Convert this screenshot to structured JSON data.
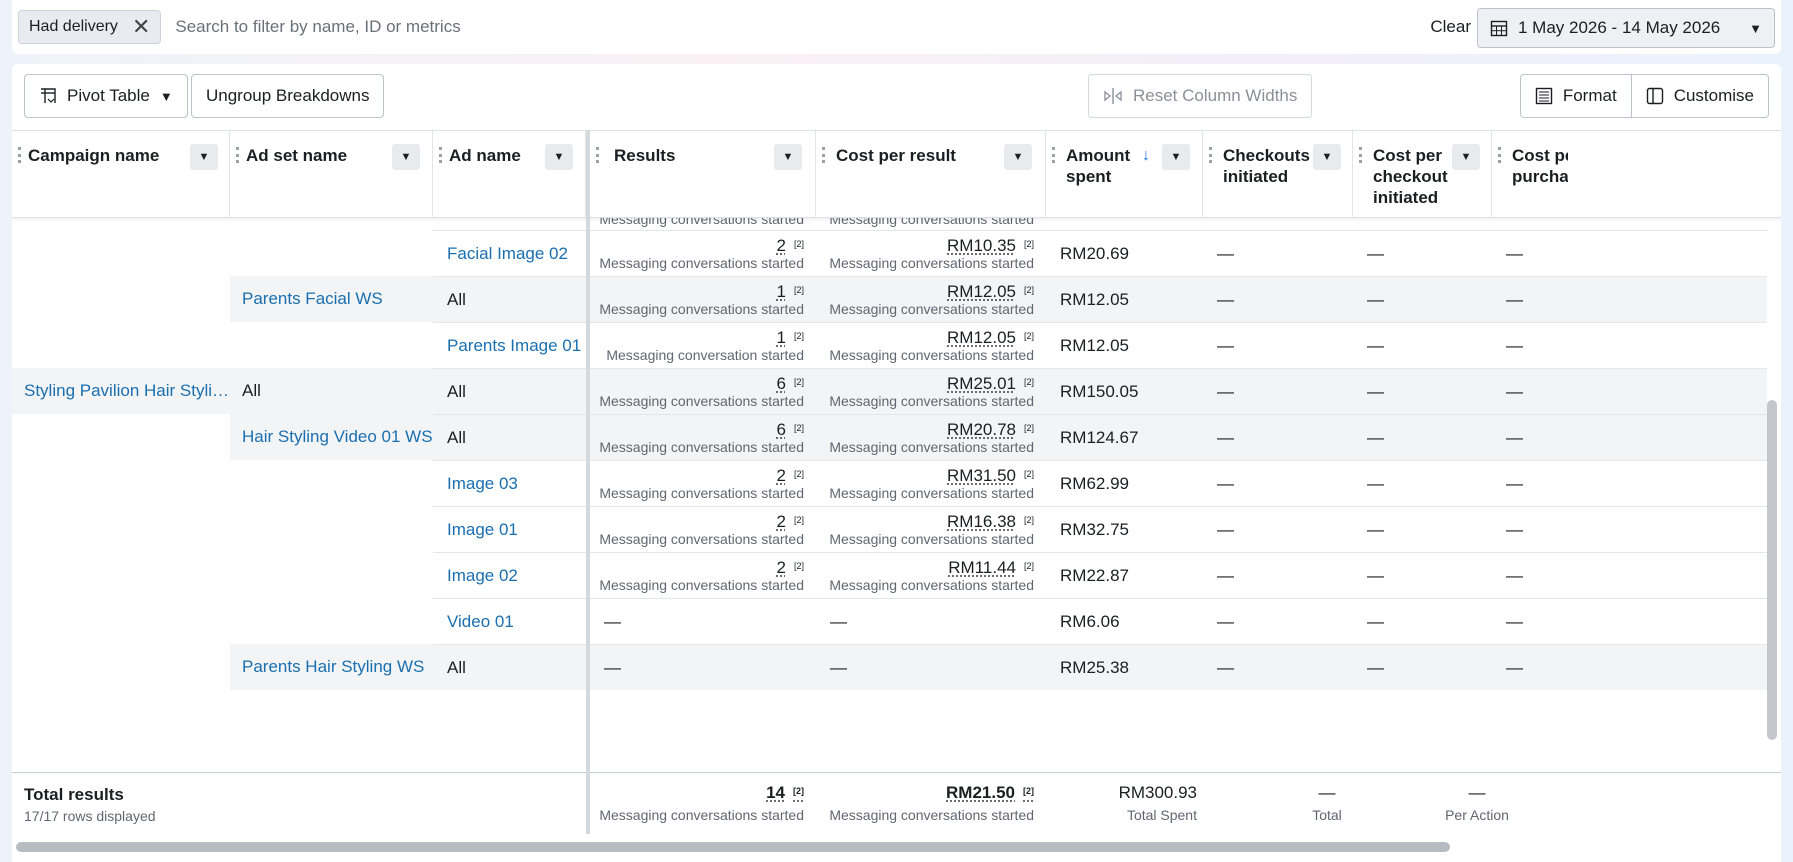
{
  "filter": {
    "chip_label": "Had delivery",
    "search_placeholder": "Search to filter by name, ID or metrics",
    "clear_label": "Clear",
    "date_range": "1 May 2026 - 14 May 2026"
  },
  "toolbar": {
    "pivot_label": "Pivot Table",
    "ungroup_label": "Ungroup Breakdowns",
    "reset_label": "Reset Column Widths",
    "format_label": "Format",
    "customise_label": "Customise"
  },
  "columns": {
    "campaign": "Campaign name",
    "adset": "Ad set name",
    "ad": "Ad name",
    "results": "Results",
    "cpr": "Cost per result",
    "amount_1": "Amount",
    "amount_2": "spent",
    "checkouts_1": "Checkouts",
    "checkouts_2": "initiated",
    "cpc_1": "Cost per",
    "cpc_2": "checkout",
    "cpc_3": "initiated",
    "cpp_1": "Cost pe",
    "cpp_2": "purcha"
  },
  "partial_row": {
    "results_sub": "Messaging conversations started",
    "cpr_sub": "Messaging conversations started"
  },
  "rows": [
    {
      "campaign": "",
      "adset": "",
      "ad": "Facial Image 02",
      "results": "2",
      "results_sup": "[2]",
      "results_sub": "Messaging conversations started",
      "cpr": "RM10.35",
      "cpr_sup": "[2]",
      "cpr_sub": "Messaging conversations started",
      "amount": "RM20.69",
      "checkouts": "—",
      "cpc": "—",
      "cpp": "—"
    },
    {
      "campaign": "",
      "adset": "Parents Facial WS",
      "ad": "All",
      "results": "1",
      "results_sup": "[2]",
      "results_sub": "Messaging conversations started",
      "cpr": "RM12.05",
      "cpr_sup": "[2]",
      "cpr_sub": "Messaging conversations started",
      "amount": "RM12.05",
      "checkouts": "—",
      "cpc": "—",
      "cpp": "—"
    },
    {
      "campaign": "",
      "adset": "",
      "ad": "Parents Image 01",
      "results": "1",
      "results_sup": "[2]",
      "results_sub": "Messaging conversation started",
      "cpr": "RM12.05",
      "cpr_sup": "[2]",
      "cpr_sub": "Messaging conversations started",
      "amount": "RM12.05",
      "checkouts": "—",
      "cpc": "—",
      "cpp": "—"
    },
    {
      "campaign": "Styling Pavilion Hair Styli…",
      "adset": "All",
      "ad": "All",
      "results": "6",
      "results_sup": "[2]",
      "results_sub": "Messaging conversations started",
      "cpr": "RM25.01",
      "cpr_sup": "[2]",
      "cpr_sub": "Messaging conversations started",
      "amount": "RM150.05",
      "checkouts": "—",
      "cpc": "—",
      "cpp": "—"
    },
    {
      "campaign": "",
      "adset": "Hair Styling Video 01 WS",
      "ad": "All",
      "results": "6",
      "results_sup": "[2]",
      "results_sub": "Messaging conversations started",
      "cpr": "RM20.78",
      "cpr_sup": "[2]",
      "cpr_sub": "Messaging conversations started",
      "amount": "RM124.67",
      "checkouts": "—",
      "cpc": "—",
      "cpp": "—"
    },
    {
      "campaign": "",
      "adset": "",
      "ad": "Image 03",
      "results": "2",
      "results_sup": "[2]",
      "results_sub": "Messaging conversations started",
      "cpr": "RM31.50",
      "cpr_sup": "[2]",
      "cpr_sub": "Messaging conversations started",
      "amount": "RM62.99",
      "checkouts": "—",
      "cpc": "—",
      "cpp": "—"
    },
    {
      "campaign": "",
      "adset": "",
      "ad": "Image 01",
      "results": "2",
      "results_sup": "[2]",
      "results_sub": "Messaging conversations started",
      "cpr": "RM16.38",
      "cpr_sup": "[2]",
      "cpr_sub": "Messaging conversations started",
      "amount": "RM32.75",
      "checkouts": "—",
      "cpc": "—",
      "cpp": "—"
    },
    {
      "campaign": "",
      "adset": "",
      "ad": "Image 02",
      "results": "2",
      "results_sup": "[2]",
      "results_sub": "Messaging conversations started",
      "cpr": "RM11.44",
      "cpr_sup": "[2]",
      "cpr_sub": "Messaging conversations started",
      "amount": "RM22.87",
      "checkouts": "—",
      "cpc": "—",
      "cpp": "—"
    },
    {
      "campaign": "",
      "adset": "",
      "ad": "Video 01",
      "results": "—",
      "results_sup": "",
      "results_sub": "",
      "cpr": "—",
      "cpr_sup": "",
      "cpr_sub": "",
      "amount": "RM6.06",
      "checkouts": "—",
      "cpc": "—",
      "cpp": "—"
    },
    {
      "campaign": "",
      "adset": "Parents Hair Styling WS",
      "ad": "All",
      "results": "—",
      "results_sup": "",
      "results_sub": "",
      "cpr": "—",
      "cpr_sup": "",
      "cpr_sub": "",
      "amount": "RM25.38",
      "checkouts": "—",
      "cpc": "—",
      "cpp": "—"
    }
  ],
  "totals": {
    "label": "Total results",
    "rows_displayed": "17/17 rows displayed",
    "results": "14",
    "results_sup": "[2]",
    "results_sub": "Messaging conversations started",
    "cpr": "RM21.50",
    "cpr_sup": "[2]",
    "cpr_sub": "Messaging conversations started",
    "amount": "RM300.93",
    "amount_sub": "Total Spent",
    "checkouts": "—",
    "checkouts_sub": "Total",
    "cpc": "—",
    "cpc_sub": "Per Action"
  },
  "colors": {
    "link": "#1a6fb0",
    "accent": "#1877f2"
  }
}
